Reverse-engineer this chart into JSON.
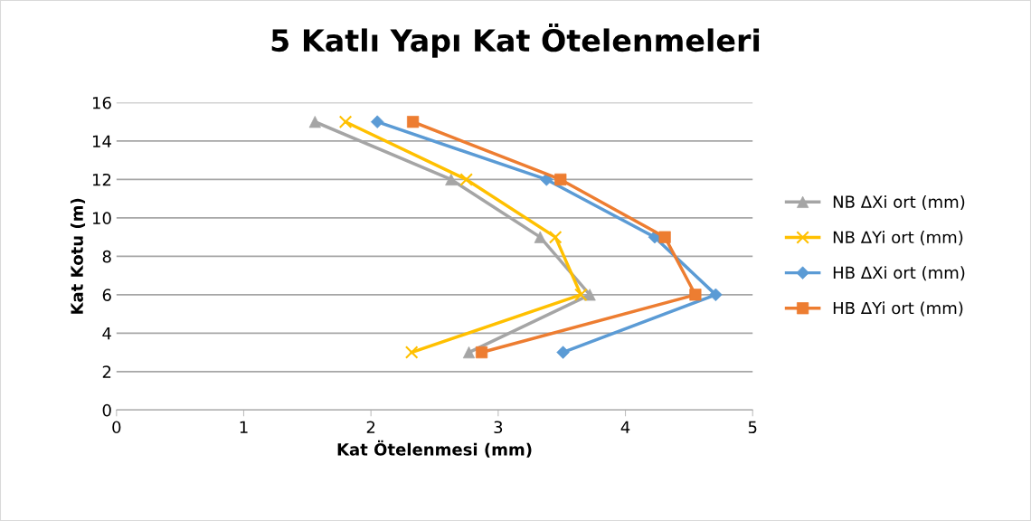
{
  "chart_data": {
    "type": "line",
    "title": "5 Katlı Yapı Kat Ötelenmeleri",
    "xlabel": "Kat Ötelenmesi (mm)",
    "ylabel": "Kat Kotu (m)",
    "xlim": [
      0,
      5
    ],
    "xticks": [
      0,
      1,
      2,
      3,
      4,
      5
    ],
    "ylim": [
      0,
      16
    ],
    "yticks": [
      0,
      2,
      4,
      6,
      8,
      10,
      12,
      14,
      16
    ],
    "grid": "y",
    "legend": "right",
    "series": [
      {
        "name": "NB ΔXi ort (mm)",
        "color": "#a5a5a5",
        "marker": "triangle",
        "x": [
          1.56,
          2.63,
          3.33,
          3.72,
          2.77
        ],
        "values": [
          15,
          12,
          9,
          6,
          3
        ]
      },
      {
        "name": "NB ΔYi ort (mm)",
        "color": "#ffc000",
        "marker": "cross",
        "x": [
          1.8,
          2.75,
          3.45,
          3.65,
          2.32
        ],
        "values": [
          15,
          12,
          9,
          6,
          3
        ]
      },
      {
        "name": "HB ΔXi ort (mm)",
        "color": "#5b9bd5",
        "marker": "diamond",
        "x": [
          2.05,
          3.38,
          4.23,
          4.71,
          3.51
        ],
        "values": [
          15,
          12,
          9,
          6,
          3
        ]
      },
      {
        "name": "HB ΔYi ort (mm)",
        "color": "#ed7d31",
        "marker": "square",
        "x": [
          2.33,
          3.49,
          4.31,
          4.55,
          2.87
        ],
        "values": [
          15,
          12,
          9,
          6,
          3
        ]
      }
    ]
  }
}
